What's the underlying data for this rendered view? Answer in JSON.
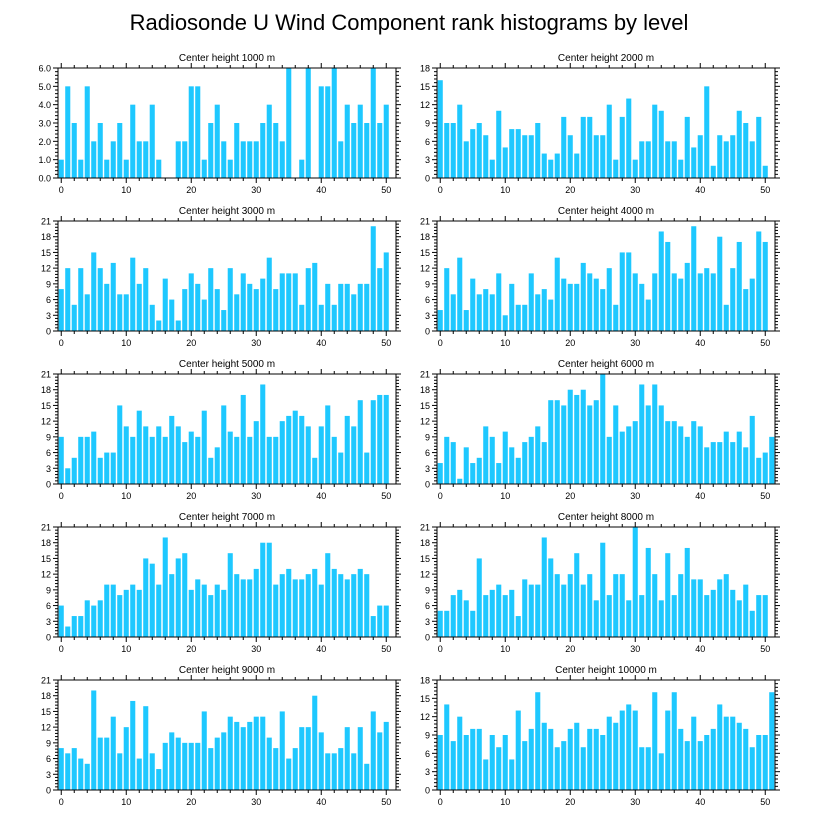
{
  "title": "Radiosonde U Wind Component rank histograms by level",
  "colors": {
    "bar": "#1ec8ff",
    "axis": "#000000",
    "background": "#ffffff"
  },
  "chart_data": [
    {
      "type": "bar",
      "title": "Center height 1000 m",
      "ylim": [
        0,
        6
      ],
      "yticks": [
        0,
        1,
        2,
        3,
        4,
        5,
        6
      ],
      "ytick_labels": [
        "0.0",
        "1.0",
        "2.0",
        "3.0",
        "4.0",
        "5.0",
        "6.0"
      ],
      "xticks": [
        0,
        10,
        20,
        30,
        40,
        50
      ],
      "values": [
        1,
        5,
        3,
        1,
        5,
        2,
        3,
        1,
        2,
        3,
        1,
        4,
        2,
        2,
        4,
        1,
        0,
        0,
        2,
        2,
        5,
        5,
        1,
        3,
        4,
        2,
        1,
        3,
        2,
        2,
        2,
        3,
        4,
        3,
        2,
        6,
        0,
        1,
        6,
        0,
        5,
        5,
        6,
        2,
        4,
        3,
        4,
        3,
        6,
        3,
        4
      ]
    },
    {
      "type": "bar",
      "title": "Center height 2000 m",
      "ylim": [
        0,
        18
      ],
      "yticks": [
        0,
        3,
        6,
        9,
        12,
        15,
        18
      ],
      "ytick_labels": [
        "0",
        "3",
        "6",
        "9",
        "12",
        "15",
        "18"
      ],
      "xticks": [
        0,
        10,
        20,
        30,
        40,
        50
      ],
      "values": [
        16,
        9,
        9,
        12,
        6,
        8,
        9,
        7,
        3,
        11,
        5,
        8,
        8,
        7,
        7,
        9,
        4,
        3,
        4,
        10,
        7,
        4,
        10,
        10,
        7,
        7,
        12,
        3,
        10,
        13,
        3,
        6,
        6,
        12,
        11,
        6,
        6,
        3,
        10,
        5,
        7,
        15,
        2,
        7,
        6,
        7,
        11,
        9,
        6,
        10,
        2
      ]
    },
    {
      "type": "bar",
      "title": "Center height 3000 m",
      "ylim": [
        0,
        21
      ],
      "yticks": [
        0,
        3,
        6,
        9,
        12,
        15,
        18,
        21
      ],
      "ytick_labels": [
        "0",
        "3",
        "6",
        "9",
        "12",
        "15",
        "18",
        "21"
      ],
      "xticks": [
        0,
        10,
        20,
        30,
        40,
        50
      ],
      "values": [
        8,
        12,
        5,
        12,
        7,
        15,
        12,
        9,
        13,
        7,
        7,
        14,
        9,
        12,
        5,
        2,
        10,
        6,
        2,
        8,
        11,
        9,
        6,
        12,
        8,
        4,
        12,
        7,
        11,
        9,
        8,
        10,
        14,
        8,
        11,
        11,
        11,
        5,
        12,
        13,
        5,
        9,
        5,
        9,
        9,
        7,
        9,
        9,
        20,
        12,
        15
      ]
    },
    {
      "type": "bar",
      "title": "Center height 4000 m",
      "ylim": [
        0,
        21
      ],
      "yticks": [
        0,
        3,
        6,
        9,
        12,
        15,
        18,
        21
      ],
      "ytick_labels": [
        "0",
        "3",
        "6",
        "9",
        "12",
        "15",
        "18",
        "21"
      ],
      "xticks": [
        0,
        10,
        20,
        30,
        40,
        50
      ],
      "values": [
        4,
        12,
        7,
        14,
        4,
        10,
        7,
        8,
        7,
        11,
        3,
        9,
        5,
        5,
        11,
        7,
        8,
        6,
        14,
        10,
        9,
        9,
        13,
        11,
        10,
        8,
        12,
        5,
        15,
        15,
        11,
        9,
        6,
        11,
        19,
        17,
        11,
        10,
        13,
        20,
        11,
        12,
        11,
        18,
        5,
        12,
        17,
        8,
        10,
        19,
        17
      ]
    },
    {
      "type": "bar",
      "title": "Center height 5000 m",
      "ylim": [
        0,
        21
      ],
      "yticks": [
        0,
        3,
        6,
        9,
        12,
        15,
        18,
        21
      ],
      "ytick_labels": [
        "0",
        "3",
        "6",
        "9",
        "12",
        "15",
        "18",
        "21"
      ],
      "xticks": [
        0,
        10,
        20,
        30,
        40,
        50
      ],
      "values": [
        9,
        3,
        5,
        9,
        9,
        10,
        5,
        6,
        6,
        15,
        11,
        9,
        14,
        11,
        9,
        11,
        9,
        13,
        11,
        8,
        10,
        9,
        14,
        5,
        7,
        15,
        10,
        9,
        17,
        9,
        12,
        19,
        9,
        9,
        12,
        13,
        14,
        13,
        11,
        5,
        11,
        15,
        9,
        6,
        13,
        11,
        16,
        6,
        16,
        17,
        17
      ]
    },
    {
      "type": "bar",
      "title": "Center height 6000 m",
      "ylim": [
        0,
        21
      ],
      "yticks": [
        0,
        3,
        6,
        9,
        12,
        15,
        18,
        21
      ],
      "ytick_labels": [
        "0",
        "3",
        "6",
        "9",
        "12",
        "15",
        "18",
        "21"
      ],
      "xticks": [
        0,
        10,
        20,
        30,
        40,
        50
      ],
      "values": [
        4,
        9,
        8,
        1,
        7,
        4,
        5,
        11,
        9,
        4,
        10,
        7,
        5,
        8,
        9,
        11,
        8,
        16,
        16,
        15,
        18,
        17,
        18,
        15,
        16,
        21,
        9,
        15,
        10,
        11,
        12,
        19,
        15,
        19,
        15,
        12,
        12,
        11,
        9,
        12,
        11,
        7,
        8,
        8,
        10,
        8,
        10,
        7,
        13,
        5,
        6,
        9
      ]
    },
    {
      "type": "bar",
      "title": "Center height 7000 m",
      "ylim": [
        0,
        21
      ],
      "yticks": [
        0,
        3,
        6,
        9,
        12,
        15,
        18,
        21
      ],
      "ytick_labels": [
        "0",
        "3",
        "6",
        "9",
        "12",
        "15",
        "18",
        "21"
      ],
      "xticks": [
        0,
        10,
        20,
        30,
        40,
        50
      ],
      "values": [
        6,
        2,
        4,
        4,
        7,
        6,
        7,
        10,
        10,
        8,
        9,
        10,
        9,
        15,
        14,
        10,
        19,
        12,
        15,
        16,
        9,
        11,
        10,
        8,
        10,
        9,
        16,
        12,
        11,
        11,
        13,
        18,
        18,
        10,
        12,
        13,
        11,
        11,
        12,
        13,
        10,
        16,
        13,
        12,
        11,
        12,
        13,
        12,
        4,
        6,
        6
      ]
    },
    {
      "type": "bar",
      "title": "Center height 8000 m",
      "ylim": [
        0,
        21
      ],
      "yticks": [
        0,
        3,
        6,
        9,
        12,
        15,
        18,
        21
      ],
      "ytick_labels": [
        "0",
        "3",
        "6",
        "9",
        "12",
        "15",
        "18",
        "21"
      ],
      "xticks": [
        0,
        10,
        20,
        30,
        40,
        50
      ],
      "values": [
        5,
        5,
        8,
        9,
        7,
        5,
        15,
        8,
        9,
        10,
        8,
        9,
        4,
        11,
        10,
        10,
        19,
        15,
        12,
        10,
        12,
        16,
        10,
        12,
        7,
        18,
        8,
        12,
        12,
        7,
        21,
        8,
        17,
        12,
        7,
        16,
        8,
        12,
        17,
        11,
        11,
        8,
        9,
        11,
        12,
        9,
        7,
        10,
        5,
        8,
        8
      ]
    },
    {
      "type": "bar",
      "title": "Center height 9000 m",
      "ylim": [
        0,
        21
      ],
      "yticks": [
        0,
        3,
        6,
        9,
        12,
        15,
        18,
        21
      ],
      "ytick_labels": [
        "0",
        "3",
        "6",
        "9",
        "12",
        "15",
        "18",
        "21"
      ],
      "xticks": [
        0,
        10,
        20,
        30,
        40,
        50
      ],
      "values": [
        8,
        7,
        8,
        6,
        5,
        19,
        10,
        10,
        14,
        7,
        12,
        17,
        6,
        16,
        7,
        4,
        9,
        11,
        10,
        9,
        9,
        9,
        15,
        8,
        10,
        11,
        14,
        13,
        12,
        13,
        14,
        14,
        10,
        8,
        15,
        6,
        8,
        12,
        12,
        18,
        11,
        7,
        7,
        8,
        12,
        7,
        12,
        5,
        15,
        11,
        13
      ]
    },
    {
      "type": "bar",
      "title": "Center height 10000 m",
      "ylim": [
        0,
        18
      ],
      "yticks": [
        0,
        3,
        6,
        9,
        12,
        15,
        18
      ],
      "ytick_labels": [
        "0",
        "3",
        "6",
        "9",
        "12",
        "15",
        "18"
      ],
      "xticks": [
        0,
        10,
        20,
        30,
        40,
        50
      ],
      "values": [
        9,
        14,
        8,
        12,
        9,
        10,
        10,
        5,
        9,
        7,
        9,
        5,
        13,
        8,
        10,
        16,
        11,
        10,
        7,
        8,
        10,
        11,
        7,
        10,
        10,
        9,
        12,
        11,
        13,
        14,
        13,
        7,
        7,
        16,
        6,
        13,
        16,
        10,
        8,
        12,
        8,
        9,
        10,
        14,
        12,
        12,
        11,
        10,
        7,
        9,
        9,
        16
      ]
    }
  ]
}
